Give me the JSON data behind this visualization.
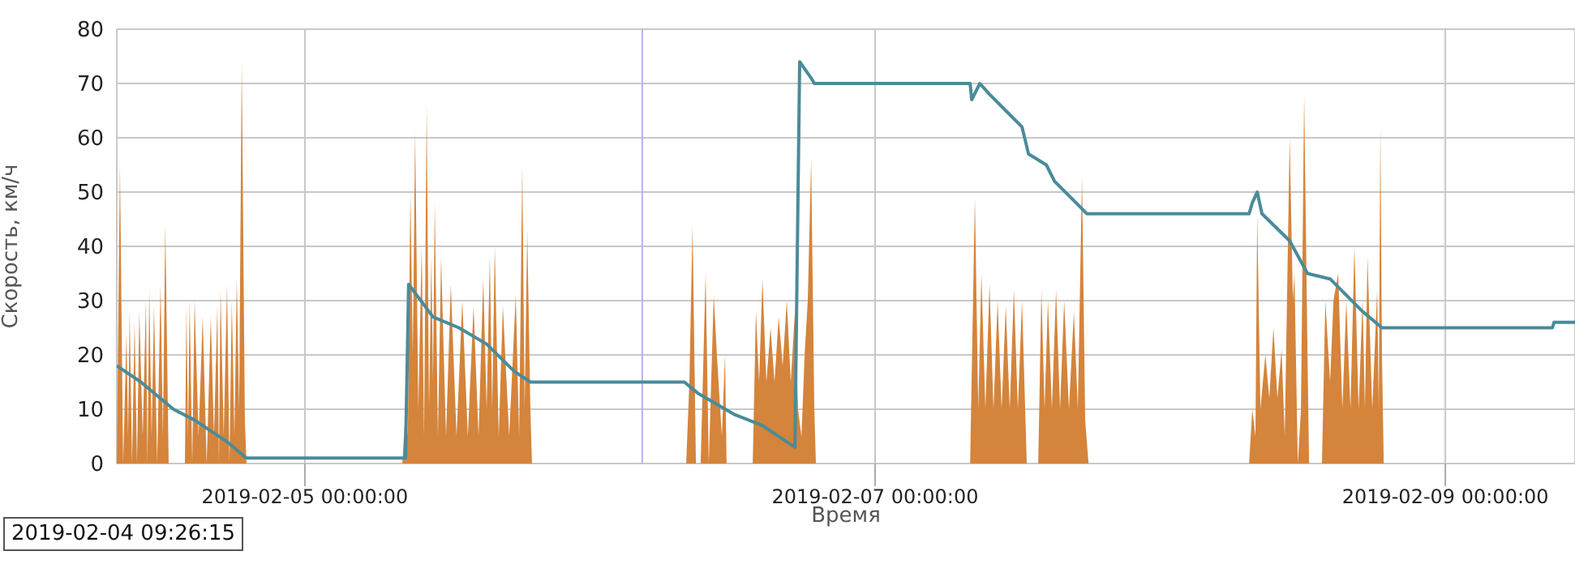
{
  "chart_data": {
    "type": "line",
    "xlabel": "Время",
    "ylabel": "Скорость, км/ч",
    "xlim": [
      "2019-02-04T08:10",
      "2019-02-09T10:55"
    ],
    "xticks": [
      {
        "value": "2019-02-05T00:00",
        "label": "2019-02-05 00:00:00"
      },
      {
        "value": "2019-02-07T00:00",
        "label": "2019-02-07 00:00:00"
      },
      {
        "value": "2019-02-09T00:00",
        "label": "2019-02-09 00:00:00"
      }
    ],
    "ylim": [
      0,
      80
    ],
    "yticks": [
      0,
      10,
      20,
      30,
      40,
      50,
      60,
      70,
      80
    ],
    "grid": true,
    "ref_lines": [
      {
        "axis": "x",
        "value": "2019-02-06T04:24",
        "color": "#b4b4ee"
      }
    ],
    "annotations": [
      "2019-02-04 09:26:15"
    ],
    "series": [
      {
        "type": "area",
        "color": "#d4843b",
        "x": [
          "2019-02-04T08:10",
          "2019-02-04T08:26",
          "2019-02-04T08:42",
          "2019-02-04T08:59",
          "2019-02-04T09:07",
          "2019-02-04T09:15",
          "2019-02-04T09:27",
          "2019-02-04T09:40",
          "2019-02-04T09:52",
          "2019-02-04T10:04",
          "2019-02-04T10:21",
          "2019-02-04T10:37",
          "2019-02-04T10:45",
          "2019-02-04T10:54",
          "2019-02-04T11:06",
          "2019-02-04T11:18",
          "2019-02-04T11:34",
          "2019-02-04T11:51",
          "2019-02-04T12:03",
          "2019-02-04T12:15",
          "2019-02-04T12:32",
          "2019-02-04T13:54",
          "2019-02-04T14:02",
          "2019-02-04T14:10",
          "2019-02-04T14:18",
          "2019-02-04T14:31",
          "2019-02-04T14:43",
          "2019-02-04T15:03",
          "2019-02-04T15:24",
          "2019-02-04T15:44",
          "2019-02-04T16:05",
          "2019-02-04T16:21",
          "2019-02-04T16:38",
          "2019-02-04T16:46",
          "2019-02-04T16:54",
          "2019-02-04T17:10",
          "2019-02-04T17:27",
          "2019-02-04T17:39",
          "2019-02-04T17:51",
          "2019-02-04T18:04",
          "2019-02-04T18:16",
          "2019-02-04T18:28",
          "2019-02-04T18:41",
          "2019-02-04T18:57",
          "2019-02-04T19:05",
          "2019-02-05T08:12",
          "2019-02-05T08:28",
          "2019-02-05T08:40",
          "2019-02-05T08:53",
          "2019-02-05T09:05",
          "2019-02-05T09:17",
          "2019-02-05T09:33",
          "2019-02-05T09:50",
          "2019-02-05T10:02",
          "2019-02-05T10:15",
          "2019-02-05T10:27",
          "2019-02-05T10:39",
          "2019-02-05T10:47",
          "2019-02-05T10:56",
          "2019-02-05T11:12",
          "2019-02-05T11:28",
          "2019-02-05T11:53",
          "2019-02-05T12:17",
          "2019-02-05T12:46",
          "2019-02-05T13:15",
          "2019-02-05T13:43",
          "2019-02-05T14:12",
          "2019-02-05T14:37",
          "2019-02-05T15:01",
          "2019-02-05T15:18",
          "2019-02-05T15:34",
          "2019-02-05T15:46",
          "2019-02-05T15:59",
          "2019-02-05T16:19",
          "2019-02-05T16:40",
          "2019-02-05T17:12",
          "2019-02-05T17:45",
          "2019-02-05T18:02",
          "2019-02-05T18:18",
          "2019-02-05T18:30",
          "2019-02-05T18:43",
          "2019-02-05T18:59",
          "2019-02-05T19:07",
          "2019-02-06T08:06",
          "2019-02-06T08:22",
          "2019-02-06T08:38",
          "2019-02-06T08:55",
          "2019-02-06T09:19",
          "2019-02-06T09:44",
          "2019-02-06T10:00",
          "2019-02-06T10:25",
          "2019-02-06T10:41",
          "2019-02-06T11:06",
          "2019-02-06T11:22",
          "2019-02-06T11:30",
          "2019-02-06T13:42",
          "2019-02-06T13:58",
          "2019-02-06T14:14",
          "2019-02-06T14:31",
          "2019-02-06T14:51",
          "2019-02-06T15:12",
          "2019-02-06T15:32",
          "2019-02-06T15:53",
          "2019-02-06T16:13",
          "2019-02-06T16:34",
          "2019-02-06T16:54",
          "2019-02-06T17:15",
          "2019-02-06T17:31",
          "2019-02-06T17:48",
          "2019-02-06T18:04",
          "2019-02-06T18:20",
          "2019-02-06T18:37",
          "2019-02-06T18:53",
          "2019-02-06T19:01",
          "2019-02-07T08:00",
          "2019-02-07T08:24",
          "2019-02-07T08:41",
          "2019-02-07T08:57",
          "2019-02-07T09:17",
          "2019-02-07T09:38",
          "2019-02-07T09:58",
          "2019-02-07T10:19",
          "2019-02-07T10:39",
          "2019-02-07T11:00",
          "2019-02-07T11:20",
          "2019-02-07T11:41",
          "2019-02-07T12:01",
          "2019-02-07T12:22",
          "2019-02-07T12:46",
          "2019-02-07T13:44",
          "2019-02-07T14:00",
          "2019-02-07T14:16",
          "2019-02-07T14:33",
          "2019-02-07T14:53",
          "2019-02-07T15:14",
          "2019-02-07T15:34",
          "2019-02-07T15:55",
          "2019-02-07T16:19",
          "2019-02-07T16:44",
          "2019-02-07T17:04",
          "2019-02-07T17:25",
          "2019-02-07T17:41",
          "2019-02-07T17:58",
          "2019-02-08T07:29",
          "2019-02-08T07:45",
          "2019-02-08T08:01",
          "2019-02-08T08:10",
          "2019-02-08T08:26",
          "2019-02-08T08:51",
          "2019-02-08T09:11",
          "2019-02-08T09:32",
          "2019-02-08T09:52",
          "2019-02-08T10:13",
          "2019-02-08T10:29",
          "2019-02-08T10:54",
          "2019-02-08T11:10",
          "2019-02-08T11:18",
          "2019-02-08T11:35",
          "2019-02-08T11:51",
          "2019-02-08T12:07",
          "2019-02-08T12:24",
          "2019-02-08T12:32",
          "2019-02-08T13:37",
          "2019-02-08T13:54",
          "2019-02-08T14:18",
          "2019-02-08T14:35",
          "2019-02-08T14:59",
          "2019-02-08T15:20",
          "2019-02-08T15:40",
          "2019-02-08T16:01",
          "2019-02-08T16:21",
          "2019-02-08T16:42",
          "2019-02-08T17:02",
          "2019-02-08T17:14",
          "2019-02-08T17:27",
          "2019-02-08T17:51",
          "2019-02-08T18:16",
          "2019-02-08T18:24",
          "2019-02-08T18:32",
          "2019-02-08T18:40",
          "2019-02-08T18:49",
          "2019-02-09T10:55"
        ],
        "values": [
          0,
          55,
          0,
          24,
          5,
          28,
          0,
          26,
          0,
          28,
          5,
          30,
          0,
          32,
          5,
          29,
          0,
          33,
          5,
          44,
          0,
          0,
          29,
          5,
          30,
          0,
          30,
          5,
          27,
          0,
          27,
          5,
          29,
          0,
          32,
          5,
          33,
          0,
          30,
          5,
          34,
          10,
          74,
          8,
          0,
          0,
          10,
          5,
          50,
          20,
          61,
          10,
          40,
          5,
          66,
          10,
          38,
          15,
          48,
          5,
          38,
          5,
          33,
          5,
          30,
          5,
          29,
          5,
          34,
          10,
          38,
          10,
          40,
          5,
          29,
          5,
          31,
          5,
          55,
          10,
          43,
          10,
          0,
          0,
          15,
          44,
          0,
          0,
          35,
          0,
          31,
          20,
          5,
          20,
          0,
          0,
          28,
          15,
          34,
          15,
          25,
          15,
          27,
          18,
          30,
          15,
          28,
          10,
          5,
          20,
          30,
          56,
          10,
          0,
          0,
          49,
          10,
          35,
          10,
          33,
          10,
          30,
          10,
          29,
          10,
          32,
          10,
          30,
          0,
          0,
          32,
          10,
          30,
          10,
          32,
          10,
          30,
          10,
          28,
          10,
          53,
          8,
          0,
          0,
          10,
          5,
          46,
          10,
          20,
          12,
          25,
          12,
          21,
          5,
          60,
          30,
          35,
          0,
          10,
          68,
          20,
          0,
          0,
          30,
          15,
          30,
          35,
          10,
          30,
          10,
          40,
          10,
          30,
          10,
          38,
          10,
          32,
          10,
          62,
          20,
          0,
          0
        ]
      },
      {
        "color": "#4a8b9a",
        "x": [
          "2019-02-04T08:10",
          "2019-02-04T10:12",
          "2019-02-04T12:56",
          "2019-02-04T14:43",
          "2019-02-04T17:27",
          "2019-02-04T19:05",
          "2019-02-05T08:28",
          "2019-02-05T08:44",
          "2019-02-05T10:47",
          "2019-02-05T12:58",
          "2019-02-05T15:18",
          "2019-02-05T17:37",
          "2019-02-05T18:59",
          "2019-02-06T07:57",
          "2019-02-06T09:03",
          "2019-02-06T12:11",
          "2019-02-06T14:31",
          "2019-02-06T17:15",
          "2019-02-06T17:39",
          "2019-02-06T18:37",
          "2019-02-06T18:53",
          "2019-02-07T08:00",
          "2019-02-07T08:08",
          "2019-02-07T08:49",
          "2019-02-07T09:38",
          "2019-02-07T11:00",
          "2019-02-07T12:22",
          "2019-02-07T12:55",
          "2019-02-07T14:25",
          "2019-02-07T15:06",
          "2019-02-07T16:28",
          "2019-02-07T17:50",
          "2019-02-08T07:29",
          "2019-02-08T07:45",
          "2019-02-08T08:10",
          "2019-02-08T08:34",
          "2019-02-08T10:54",
          "2019-02-08T12:24",
          "2019-02-08T14:18",
          "2019-02-08T17:02",
          "2019-02-08T18:40",
          "2019-02-09T09:01",
          "2019-02-09T09:09",
          "2019-02-09T10:55"
        ],
        "values": [
          18,
          15,
          10,
          8,
          4,
          1,
          1,
          33,
          27,
          25,
          22,
          17,
          15,
          15,
          13,
          9,
          7,
          3,
          74,
          71,
          70,
          70,
          67,
          70,
          68,
          65,
          62,
          57,
          55,
          52,
          49,
          46,
          46,
          48,
          50,
          46,
          41,
          35,
          34,
          28,
          25,
          25,
          26,
          26
        ]
      }
    ]
  }
}
